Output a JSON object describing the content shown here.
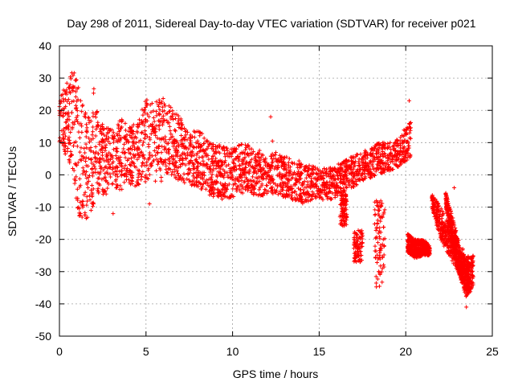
{
  "chart_data": {
    "type": "scatter",
    "title": "Day 298 of 2011, Sidereal Day-to-day VTEC variation (SDTVAR) for receiver p021",
    "xlabel": "GPS time / hours",
    "ylabel": "SDTVAR / TECUs",
    "xlim": [
      0,
      25
    ],
    "ylim": [
      -50,
      40
    ],
    "xticks": [
      "0",
      "5",
      "10",
      "15",
      "20",
      "25"
    ],
    "yticks": [
      "-50",
      "-40",
      "-30",
      "-20",
      "-10",
      "0",
      "10",
      "20",
      "30",
      "40"
    ],
    "grid": true,
    "marker": "+",
    "color": "#ff0000",
    "envelope": {
      "x": [
        0.0,
        0.2,
        0.5,
        0.8,
        1.0,
        1.2,
        1.5,
        1.8,
        2.0,
        2.3,
        2.6,
        3.0,
        3.5,
        4.0,
        4.5,
        5.0,
        5.5,
        6.0,
        6.5,
        7.0,
        7.5,
        8.0,
        8.5,
        9.0,
        9.5,
        10.0,
        10.5,
        11.0,
        11.5,
        12.0,
        12.5,
        13.0,
        13.5,
        14.0,
        14.5,
        15.0,
        15.5,
        16.0,
        16.5,
        17.0,
        17.5,
        18.0,
        18.5,
        19.0,
        19.5,
        20.0,
        20.3
      ],
      "upper": [
        24,
        26,
        30,
        33,
        32,
        25,
        20,
        17,
        28,
        17,
        15,
        14,
        18,
        15,
        16,
        24,
        22,
        27,
        20,
        18,
        12,
        15,
        11,
        10,
        9,
        8,
        10,
        9,
        8,
        6,
        7,
        6,
        5,
        4,
        3,
        2,
        2,
        3,
        5,
        6,
        7,
        9,
        10,
        10,
        11,
        15,
        17
      ],
      "lower": [
        10,
        6,
        5,
        -2,
        -10,
        -14,
        -14,
        -12,
        -10,
        -5,
        -7,
        -3,
        -5,
        -3,
        -4,
        -2,
        -2,
        -2,
        -1,
        -2,
        -3,
        -4,
        -6,
        -7,
        -8,
        -7,
        -6,
        -6,
        -7,
        -6,
        -6,
        -7,
        -8,
        -9,
        -8,
        -8,
        -8,
        -7,
        -5,
        -4,
        -2,
        -1,
        0,
        1,
        2,
        4,
        5
      ]
    },
    "right_segments": [
      {
        "name": "drop-21",
        "x": [
          21.5,
          22.0,
          22.5,
          23.0,
          23.5,
          23.9
        ],
        "upper": [
          -5,
          -10,
          -15,
          -20,
          -25,
          -25
        ],
        "lower": [
          -10,
          -20,
          -25,
          -30,
          -38,
          -35
        ]
      },
      {
        "name": "band-20",
        "x": [
          20.1,
          20.5,
          21.0,
          21.4
        ],
        "upper": [
          -18,
          -20,
          -20,
          -22
        ],
        "lower": [
          -24,
          -26,
          -25,
          -25
        ]
      },
      {
        "name": "drop-22",
        "x": [
          22.3,
          22.8,
          23.3,
          23.7
        ],
        "upper": [
          -5,
          -15,
          -25,
          -28
        ],
        "lower": [
          -10,
          -25,
          -35,
          -37
        ]
      }
    ],
    "clusters": [
      {
        "x0": 16.2,
        "x1": 16.6,
        "y0": -16,
        "y1": -6
      },
      {
        "x0": 17.0,
        "x1": 17.5,
        "y0": -27,
        "y1": -17
      },
      {
        "x0": 18.2,
        "x1": 18.8,
        "y0": -35,
        "y1": -8
      }
    ],
    "outliers": [
      {
        "x": 12.2,
        "y": 18
      },
      {
        "x": 12.3,
        "y": 10.5
      },
      {
        "x": 5.2,
        "y": -9
      },
      {
        "x": 3.1,
        "y": -12
      },
      {
        "x": 20.2,
        "y": 23
      },
      {
        "x": 22.8,
        "y": -4
      },
      {
        "x": 23.5,
        "y": -41
      }
    ]
  }
}
